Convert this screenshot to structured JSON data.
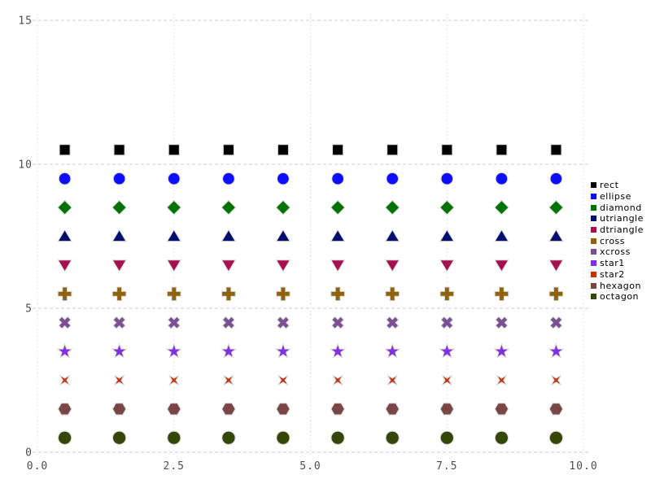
{
  "chart_data": {
    "type": "scatter",
    "title": "",
    "xlabel": "",
    "ylabel": "",
    "xlim": [
      0,
      10
    ],
    "ylim": [
      0,
      15
    ],
    "grid": true,
    "legend_position": "right",
    "background": "#ffffff",
    "tick_color": "#4d4d4d",
    "grid_color_horizontal": "#c9c9d6",
    "grid_color_vertical": "#dcdce4",
    "marker_stroke": "#d6d6d6",
    "x_ticks": {
      "values": [
        0,
        2.5,
        5,
        7.5,
        10
      ],
      "labels": [
        "0.0",
        "2.5",
        "5.0",
        "7.5",
        "10.0"
      ]
    },
    "y_ticks": {
      "values": [
        0,
        5,
        10,
        15
      ],
      "labels": [
        "0",
        "5",
        "10",
        "15"
      ]
    },
    "x": [
      0.5,
      1.5,
      2.5,
      3.5,
      4.5,
      5.5,
      6.5,
      7.5,
      8.5,
      9.5
    ],
    "series": [
      {
        "name": "rect",
        "marker": "rect",
        "color": "#000000",
        "y": 10.5
      },
      {
        "name": "ellipse",
        "marker": "ellipse",
        "color": "#0d0dff",
        "y": 9.5
      },
      {
        "name": "diamond",
        "marker": "diamond",
        "color": "#007200",
        "y": 8.5
      },
      {
        "name": "utriangle",
        "marker": "utriangle",
        "color": "#000f6b",
        "y": 7.5
      },
      {
        "name": "dtriangle",
        "marker": "dtriangle",
        "color": "#a5104f",
        "y": 6.5
      },
      {
        "name": "cross",
        "marker": "cross",
        "color": "#8f620e",
        "y": 5.5
      },
      {
        "name": "xcross",
        "marker": "xcross",
        "color": "#7b4f93",
        "y": 4.5
      },
      {
        "name": "star1",
        "marker": "star1",
        "color": "#8130df",
        "y": 3.5
      },
      {
        "name": "star2",
        "marker": "star2",
        "color": "#c33109",
        "y": 2.5
      },
      {
        "name": "hexagon",
        "marker": "hexagon",
        "color": "#7a4545",
        "y": 1.5
      },
      {
        "name": "octagon",
        "marker": "octagon",
        "color": "#344709",
        "y": 0.5
      }
    ]
  }
}
